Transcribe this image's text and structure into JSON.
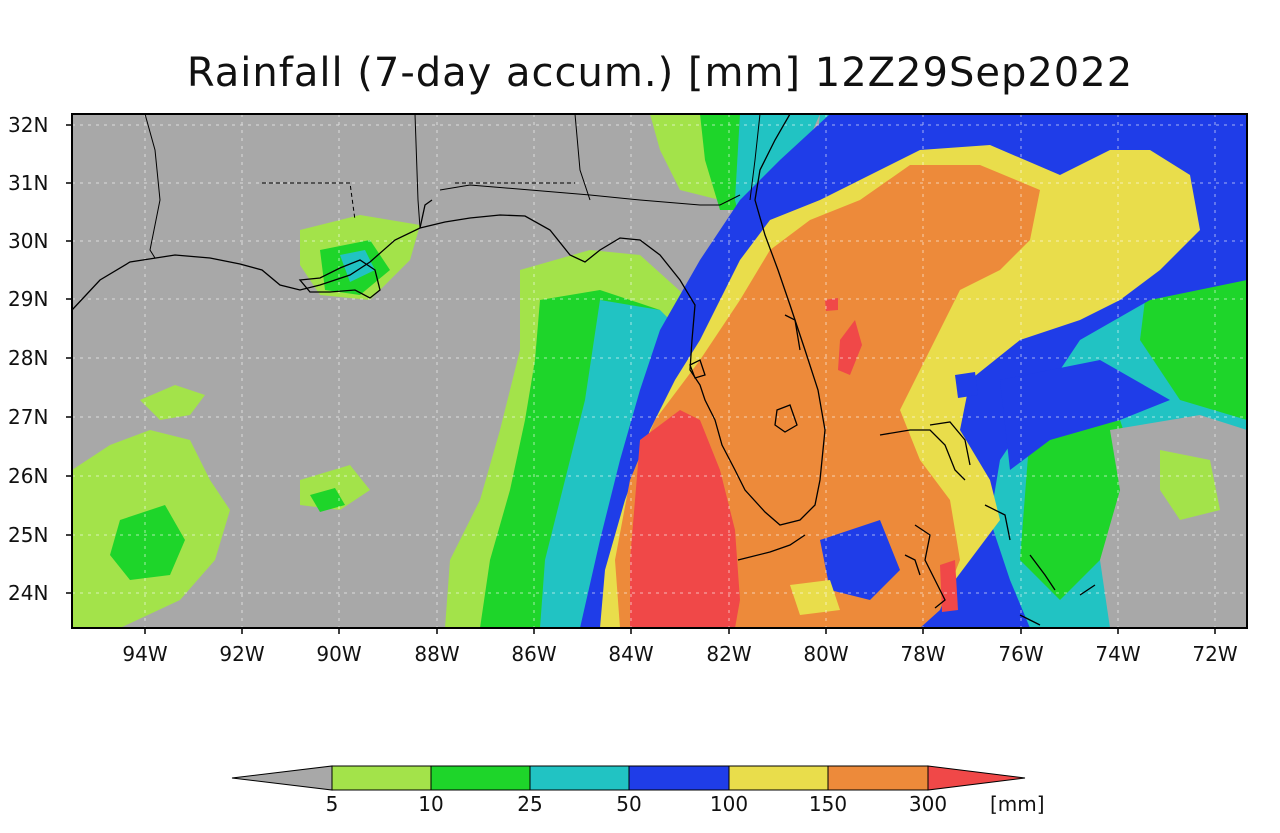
{
  "title": "Rainfall (7-day accum.) [mm] 12Z29Sep2022",
  "map": {
    "lon_range": [
      -95.5,
      -71.3
    ],
    "lat_range": [
      23.4,
      32.2
    ],
    "lat_labels": [
      "32N",
      "31N",
      "30N",
      "29N",
      "28N",
      "27N",
      "26N",
      "25N",
      "24N"
    ],
    "lat_values": [
      32,
      31,
      30,
      29,
      28,
      27,
      26,
      25,
      24
    ],
    "lon_labels": [
      "94W",
      "92W",
      "90W",
      "88W",
      "86W",
      "84W",
      "82W",
      "80W",
      "78W",
      "76W",
      "74W",
      "72W"
    ],
    "lon_values": [
      -94,
      -92,
      -90,
      -88,
      -86,
      -84,
      -82,
      -80,
      -78,
      -76,
      -74,
      -72
    ],
    "colors": {
      "no_rain": "#a8a8a8",
      "c5": "#a3e34a",
      "c10": "#1ed52a",
      "c25": "#21c3c3",
      "c50": "#1f3de8",
      "c100": "#e9dd4b",
      "c150": "#ed8a3a",
      "c300": "#f04848",
      "coast": "#000000"
    }
  },
  "colorbar": {
    "labels": [
      "5",
      "10",
      "25",
      "50",
      "100",
      "150",
      "300"
    ],
    "unit": "[mm]",
    "colors": [
      "#a8a8a8",
      "#a3e34a",
      "#1ed52a",
      "#21c3c3",
      "#1f3de8",
      "#e9dd4b",
      "#ed8a3a",
      "#f04848"
    ]
  }
}
